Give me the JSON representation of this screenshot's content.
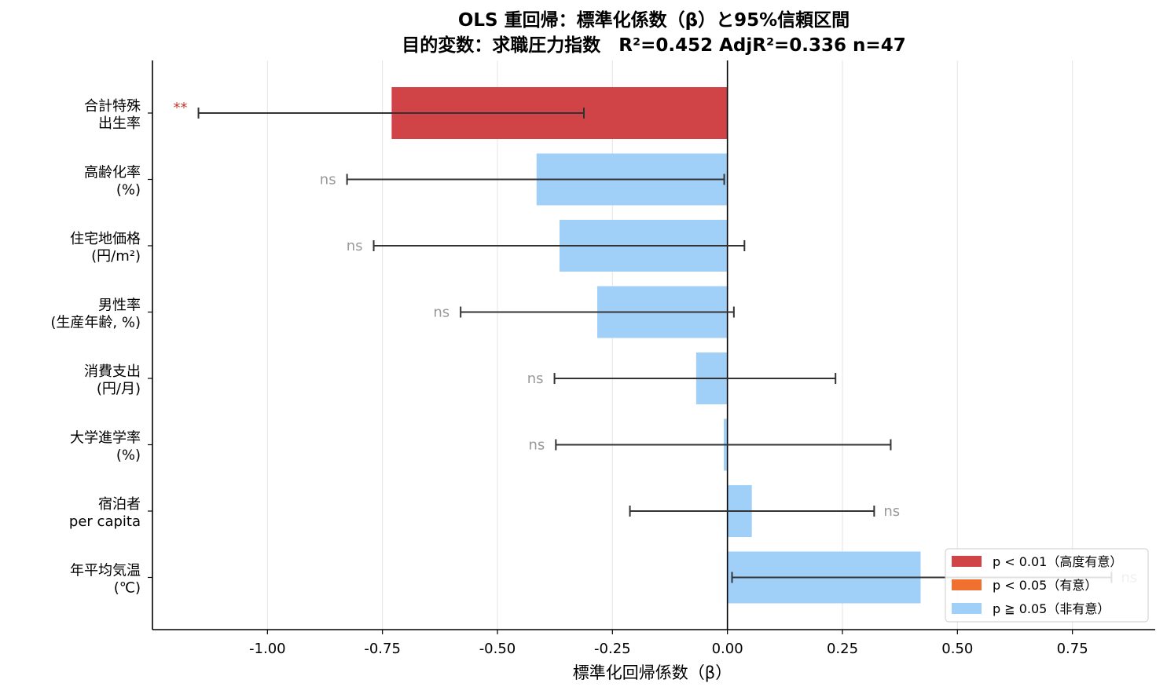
{
  "chart_data": {
    "type": "bar",
    "orientation": "horizontal",
    "title": "OLS 重回帰：標準化係数（β）と95%信頼区間",
    "subtitle": "目的変数：求職圧力指数　R²=0.452  AdjR²=0.336  n=47",
    "xlabel": "標準化回帰係数（β）",
    "ylabel": "",
    "xlim": [
      -1.25,
      0.93
    ],
    "xticks": [
      -1.0,
      -0.75,
      -0.5,
      -0.25,
      0.0,
      0.25,
      0.5,
      0.75
    ],
    "xtick_labels": [
      "-1.00",
      "-0.75",
      "-0.50",
      "-0.25",
      "0.00",
      "0.25",
      "0.50",
      "0.75"
    ],
    "grid": "vertical",
    "categories": [
      [
        "合計特殊",
        "出生率"
      ],
      [
        "高齢化率",
        "(%)"
      ],
      [
        "住宅地価格",
        "(円/m²)"
      ],
      [
        "男性率",
        "(生産年齢, %)"
      ],
      [
        "消費支出",
        "(円/月)"
      ],
      [
        "大学進学率",
        "(%)"
      ],
      [
        "宿泊者",
        "per capita"
      ],
      [
        "年平均気温",
        "(℃)"
      ]
    ],
    "values": [
      -0.73,
      -0.415,
      -0.365,
      -0.283,
      -0.068,
      -0.008,
      0.053,
      0.42
    ],
    "ci_low": [
      -1.15,
      -0.827,
      -0.769,
      -0.58,
      -0.376,
      -0.373,
      -0.212,
      0.01
    ],
    "ci_high": [
      -0.312,
      -0.007,
      0.037,
      0.014,
      0.235,
      0.355,
      0.319,
      0.835
    ],
    "significance": [
      "**",
      "ns",
      "ns",
      "ns",
      "ns",
      "ns",
      "ns",
      "ns"
    ],
    "significance_class": [
      "p01",
      "ns",
      "ns",
      "ns",
      "ns",
      "ns",
      "ns",
      "ns"
    ],
    "colors": {
      "p01": "#d04448",
      "p05": "#f07030",
      "ns": "#a0cff8",
      "errorbar": "#333333",
      "zero_line": "#000000",
      "grid": "#e4e4e4",
      "ns_text": "#999999",
      "sig_text": "#c0392b"
    },
    "legend": {
      "position": "lower-right",
      "entries": [
        {
          "label": "p < 0.01（高度有意）",
          "color_key": "p01"
        },
        {
          "label": "p < 0.05（有意）",
          "color_key": "p05"
        },
        {
          "label": "p ≧ 0.05（非有意）",
          "color_key": "ns"
        }
      ]
    }
  }
}
